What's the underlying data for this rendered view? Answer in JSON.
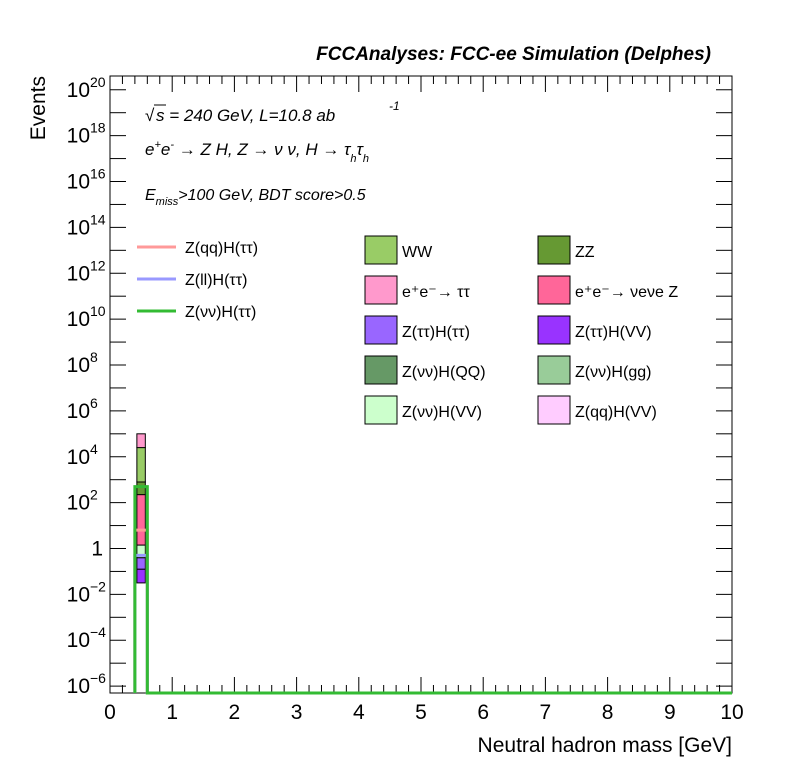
{
  "chart_data": {
    "type": "histogram",
    "header": "FCCAnalyses: FCC-ee Simulation (Delphes)",
    "annotations": {
      "energy_lumi": {
        "sqrt": "√",
        "s_text": "s = 240 GeV, L=10.8 ab",
        "sup": "-1"
      },
      "process": {
        "prefix": "e",
        "p1": "+",
        "mid": "e",
        "p2": "-",
        "rest": " → Z H, Z  → ν ν, H  → τ",
        "sub1": "h",
        "tau2": "τ",
        "sub2": "h"
      },
      "cuts": {
        "e": "E",
        "sub": "miss",
        "rest": ">100 GeV, BDT score>0.5"
      }
    },
    "xlabel": "Neutral hadron mass [GeV]",
    "ylabel": "Events",
    "xlim": [
      0,
      10
    ],
    "ylim_log10": [
      -6.3,
      20.6
    ],
    "y_log_scale": true,
    "x_ticks": [
      "0",
      "1",
      "2",
      "3",
      "4",
      "5",
      "6",
      "7",
      "8",
      "9",
      "10"
    ],
    "y_ticks": [
      {
        "exp": -6,
        "base": "10",
        "sup": "−6"
      },
      {
        "exp": -4,
        "base": "10",
        "sup": "−4"
      },
      {
        "exp": -2,
        "base": "10",
        "sup": "−2"
      },
      {
        "exp": 0,
        "base": "1",
        "sup": ""
      },
      {
        "exp": 2,
        "base": "10",
        "sup": "2"
      },
      {
        "exp": 4,
        "base": "10",
        "sup": "4"
      },
      {
        "exp": 6,
        "base": "10",
        "sup": "6"
      },
      {
        "exp": 8,
        "base": "10",
        "sup": "8"
      },
      {
        "exp": 10,
        "base": "10",
        "sup": "10"
      },
      {
        "exp": 12,
        "base": "10",
        "sup": "12"
      },
      {
        "exp": 14,
        "base": "10",
        "sup": "14"
      },
      {
        "exp": 16,
        "base": "10",
        "sup": "16"
      },
      {
        "exp": 18,
        "base": "10",
        "sup": "18"
      },
      {
        "exp": 20,
        "base": "10",
        "sup": "20"
      }
    ],
    "bin": {
      "x_low": 0.4,
      "x_high": 0.6
    },
    "stack": [
      {
        "name": "Z(ττ)H(VV)",
        "color": "#9933ff",
        "log10_lo": -1.5,
        "log10_hi": -0.9
      },
      {
        "name": "Z(ττ)H(ττ)",
        "color": "#9966ff",
        "log10_lo": -0.9,
        "log10_hi": -0.4
      },
      {
        "name": "Z(νν)H(VV)",
        "color": "#ccffcc",
        "log10_lo": -0.4,
        "log10_hi": 0.15
      },
      {
        "name": "e⁺e⁻→ νeνe Z",
        "color": "#ff6699",
        "log10_lo": 0.15,
        "log10_hi": 2.35
      },
      {
        "name": "ZZ",
        "color": "#669933",
        "log10_lo": 2.35,
        "log10_hi": 2.9
      },
      {
        "name": "WW",
        "color": "#99cc66",
        "log10_lo": 2.9,
        "log10_hi": 4.4
      },
      {
        "name": "e⁺e⁻→ ττ",
        "color": "#ff99cc",
        "log10_lo": 4.4,
        "log10_hi": 5.0
      }
    ],
    "signals": [
      {
        "name": "Z(qq)H(ττ)",
        "color": "#ff9999",
        "log10": 0.8
      },
      {
        "name": "Z(ll)H(ττ)",
        "color": "#9999ff",
        "log10": -0.3
      },
      {
        "name": "Z(νν)H(ττ)",
        "color": "#33bb33",
        "log10": 2.7
      }
    ],
    "legend_signal": [
      {
        "label": "Z(qq)H(ττ)",
        "color": "#ff9999"
      },
      {
        "label": "Z(ll)H(ττ)",
        "color": "#9999ff"
      },
      {
        "label": "Z(νν)H(ττ)",
        "color": "#33bb33"
      }
    ],
    "legend_bkg": [
      {
        "label": "WW",
        "color": "#99cc66"
      },
      {
        "label": "ZZ",
        "color": "#669933"
      },
      {
        "label": "e⁺e⁻→ ττ",
        "color": "#ff99cc"
      },
      {
        "label": "e⁺e⁻→ νeνe Z",
        "color": "#ff6699"
      },
      {
        "label": "Z(ττ)H(ττ)",
        "color": "#9966ff"
      },
      {
        "label": "Z(ττ)H(VV)",
        "color": "#9933ff"
      },
      {
        "label": "Z(νν)H(QQ)",
        "color": "#669966"
      },
      {
        "label": "Z(νν)H(gg)",
        "color": "#99cc99"
      },
      {
        "label": "Z(νν)H(VV)",
        "color": "#ccffcc"
      },
      {
        "label": "Z(qq)H(VV)",
        "color": "#ffccff"
      }
    ]
  }
}
